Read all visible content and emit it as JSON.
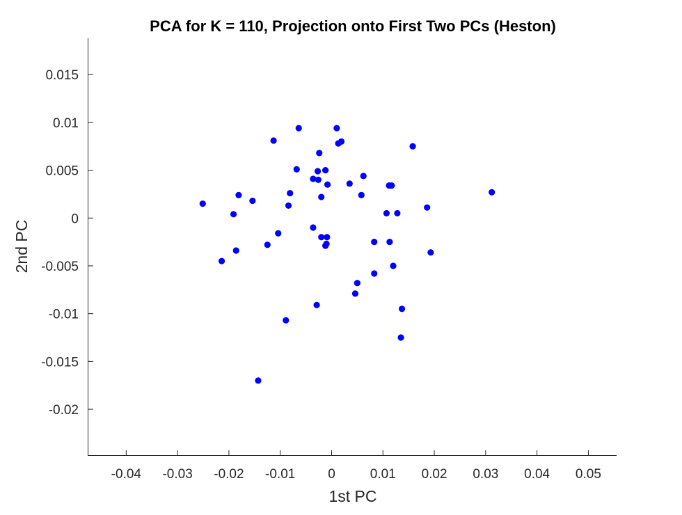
{
  "chart_data": {
    "type": "scatter",
    "title": "PCA for K = 110, Projection onto First Two PCs (Heston)",
    "xlabel": "1st PC",
    "ylabel": "2nd PC",
    "xlim": [
      -0.0475,
      0.0555
    ],
    "ylim": [
      -0.0248,
      0.0188
    ],
    "xticks": [
      -0.04,
      -0.03,
      -0.02,
      -0.01,
      0,
      0.01,
      0.02,
      0.03,
      0.04,
      0.05
    ],
    "xtick_labels": [
      "-0.04",
      "-0.03",
      "-0.02",
      "-0.01",
      "0",
      "0.01",
      "0.02",
      "0.03",
      "0.04",
      "0.05"
    ],
    "yticks": [
      0.015,
      0.01,
      0.005,
      0,
      -0.005,
      -0.01,
      -0.015,
      -0.02
    ],
    "ytick_labels": [
      "0.015",
      "0.01",
      "0.005",
      "0",
      "-0.005",
      "-0.01",
      "-0.015",
      "-0.02"
    ],
    "grid": false,
    "box": false,
    "marker_color": "#0000ff",
    "series": [
      {
        "marker": "filled-circle",
        "color": "#0000ff",
        "points": [
          [
            -0.0251,
            0.0015
          ],
          [
            -0.0214,
            -0.0045
          ],
          [
            -0.0191,
            0.0004
          ],
          [
            -0.0186,
            -0.0034
          ],
          [
            -0.0181,
            0.0024
          ],
          [
            -0.0154,
            0.0018
          ],
          [
            -0.0143,
            -0.017
          ],
          [
            -0.0125,
            -0.0028
          ],
          [
            -0.0113,
            0.0081
          ],
          [
            -0.0104,
            -0.0016
          ],
          [
            -0.0089,
            -0.0107
          ],
          [
            -0.0084,
            0.0013
          ],
          [
            -0.0081,
            0.0026
          ],
          [
            -0.0068,
            0.0051
          ],
          [
            -0.0064,
            0.0094
          ],
          [
            -0.0036,
            0.0041
          ],
          [
            -0.0036,
            -0.001
          ],
          [
            -0.0029,
            -0.0091
          ],
          [
            -0.0027,
            0.0049
          ],
          [
            -0.0026,
            0.004
          ],
          [
            -0.0024,
            0.0068
          ],
          [
            -0.002,
            0.0022
          ],
          [
            -0.002,
            -0.002
          ],
          [
            -0.0012,
            0.005
          ],
          [
            -0.0012,
            -0.0029
          ],
          [
            -0.001,
            -0.0027
          ],
          [
            -0.0009,
            -0.002
          ],
          [
            -0.0008,
            0.0035
          ],
          [
            0.001,
            0.0094
          ],
          [
            0.0013,
            0.0078
          ],
          [
            0.0019,
            0.008
          ],
          [
            0.0035,
            0.0036
          ],
          [
            0.0046,
            -0.0079
          ],
          [
            0.005,
            -0.0068
          ],
          [
            0.0058,
            0.0024
          ],
          [
            0.0062,
            0.0044
          ],
          [
            0.0083,
            -0.0025
          ],
          [
            0.0083,
            -0.0058
          ],
          [
            0.0107,
            0.0005
          ],
          [
            0.0112,
            0.0034
          ],
          [
            0.0113,
            -0.0025
          ],
          [
            0.0117,
            0.0034
          ],
          [
            0.012,
            -0.005
          ],
          [
            0.0128,
            0.0005
          ],
          [
            0.0135,
            -0.0125
          ],
          [
            0.0137,
            -0.0095
          ],
          [
            0.0158,
            0.0075
          ],
          [
            0.0186,
            0.0011
          ],
          [
            0.0193,
            -0.0036
          ],
          [
            0.0312,
            0.0027
          ]
        ]
      }
    ]
  }
}
